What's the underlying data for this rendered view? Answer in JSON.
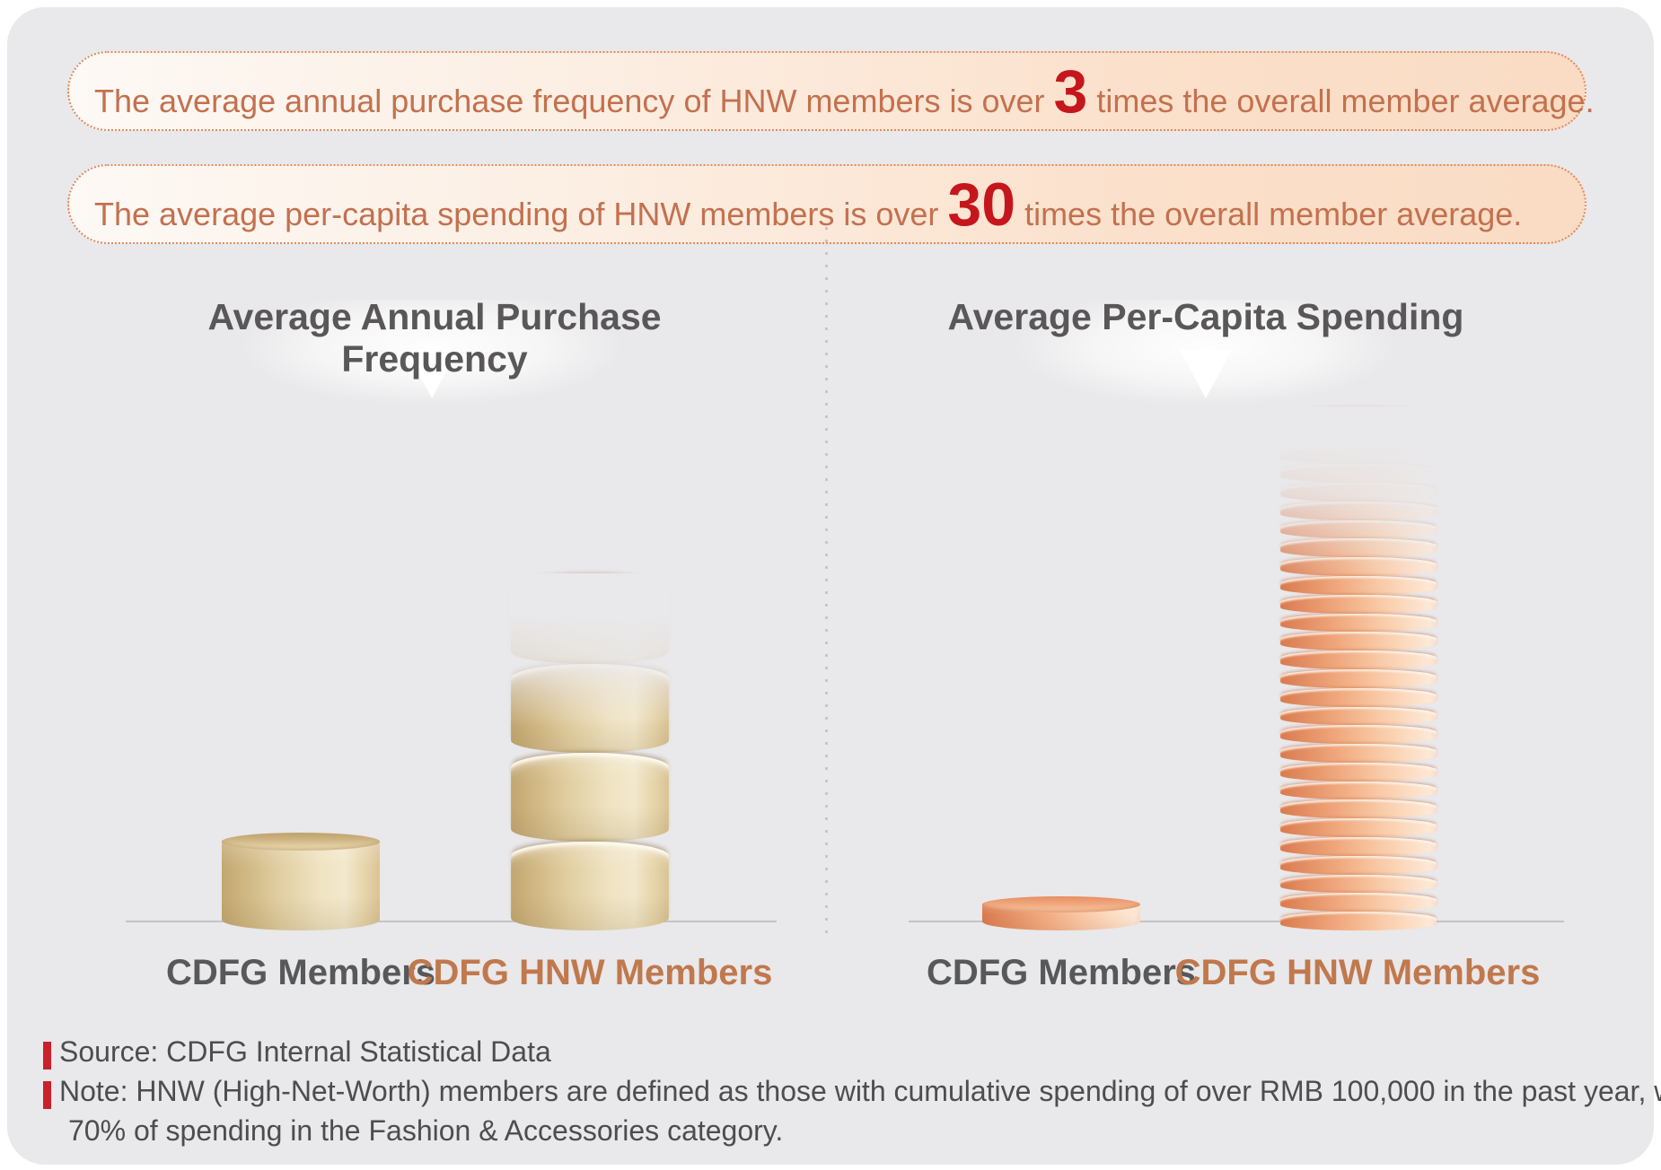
{
  "banners": [
    {
      "text_before": "The average annual purchase frequency of HNW members is over ",
      "highlight": "3",
      "text_after": " times the overall member average."
    },
    {
      "text_before": "The average per-capita spending of HNW members is over ",
      "highlight": "30",
      "text_after": " times the overall member average."
    }
  ],
  "chart_data": [
    {
      "type": "bar",
      "title": "Average Annual Purchase Frequency",
      "categories": [
        "CDFG Members",
        "CDFG HNW Members"
      ],
      "values": [
        1,
        3
      ],
      "unit": "relative multiple (HNW is over 3x members average)",
      "style": "coin-stack cylinders, tan color, HNW stack fades out at top",
      "coins": [
        1,
        4
      ]
    },
    {
      "type": "bar",
      "title": "Average Per-Capita Spending",
      "categories": [
        "CDFG Members",
        "CDFG HNW Members"
      ],
      "values": [
        1,
        30
      ],
      "unit": "relative multiple (HNW is over 30x members average)",
      "style": "coin-stack cylinders, salmon color, HNW stack fades out at top",
      "coins": [
        1,
        28
      ]
    }
  ],
  "footer": {
    "source": "Source: CDFG Internal Statistical Data",
    "note_line1": "Note: HNW (High-Net-Worth) members are defined as those with cumulative spending of over RMB 100,000 in the past year, with over",
    "note_line2": "70% of spending in the Fashion & Accessories category."
  },
  "colors": {
    "panel_bg": "#e9e8ea",
    "banner_text": "#c3714f",
    "banner_border": "#dd8a5e",
    "highlight_red": "#c6161d",
    "title_gray": "#595757",
    "hnw_label_orange": "#c0784d",
    "tan_coin": "#e3d0a4",
    "salmon_coin": "#eb9a70",
    "footer_red_bar": "#c92129"
  }
}
